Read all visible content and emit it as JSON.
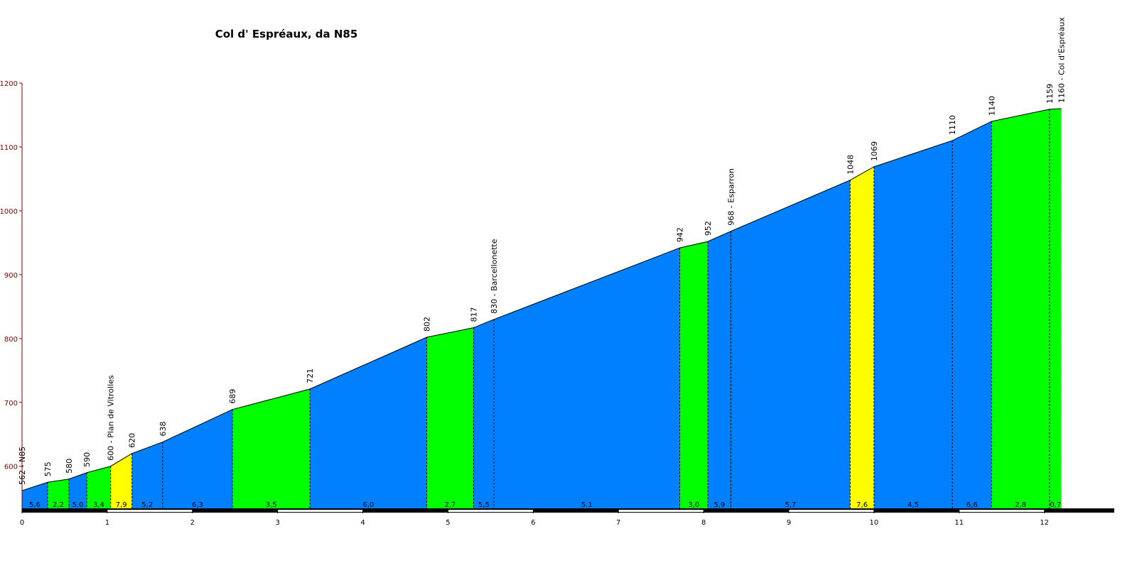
{
  "chart_data": {
    "type": "profile",
    "title": "Col d' Espréaux, da N85",
    "x": [
      0,
      0.3,
      0.55,
      0.76,
      1.04,
      1.29,
      1.65,
      2.47,
      3.38,
      4.75,
      5.3,
      5.54,
      7.72,
      8.05,
      8.32,
      9.72,
      10.0,
      10.92,
      11.38,
      12.06,
      12.2
    ],
    "values": [
      562,
      575,
      580,
      590,
      600,
      620,
      638,
      689,
      721,
      802,
      817,
      830,
      942,
      952,
      968,
      1048,
      1069,
      1110,
      1140,
      1159,
      1160
    ],
    "value_labels": [
      "562 - N85",
      "575",
      "580",
      "590",
      "600 - Plan de Vitrolles",
      "620",
      "638",
      "689",
      "721",
      "802",
      "817",
      "830 - Barcellonette",
      "942",
      "952",
      "968 - Esparron",
      "1048",
      "1069",
      "1110",
      "1140",
      "1159",
      "1160 - Col d'Espréaux"
    ],
    "grades": {
      "values": [
        5.6,
        2.2,
        5.0,
        3.4,
        7.9,
        5.2,
        6.3,
        3.5,
        6.0,
        2.7,
        5.5,
        5.1,
        3.0,
        5.9,
        5.7,
        7.6,
        4.5,
        6.6,
        2.8,
        0.7
      ],
      "value_labels": [
        "5,6",
        "2,2",
        "5,0",
        "3,4",
        "7,9",
        "5,2",
        "6,3",
        "3,5",
        "6,0",
        "2,7",
        "5,5",
        "5,1",
        "3,0",
        "5,9",
        "5,7",
        "7,6",
        "4,5",
        "6,6",
        "2,8",
        "0,7"
      ],
      "colors": [
        "#0080ff",
        "#00ff00",
        "#0080ff",
        "#00ff00",
        "#ffff00",
        "#0080ff",
        "#0080ff",
        "#00ff00",
        "#0080ff",
        "#00ff00",
        "#0080ff",
        "#0080ff",
        "#00ff00",
        "#0080ff",
        "#0080ff",
        "#ffff00",
        "#0080ff",
        "#0080ff",
        "#00ff00",
        "#00ff00"
      ]
    },
    "xlim": [
      0,
      12.82
    ],
    "xticks": [
      0,
      1,
      2,
      3,
      4,
      5,
      6,
      7,
      8,
      9,
      10,
      11,
      12
    ],
    "ylim": [
      533,
      1200
    ],
    "yticks": [
      600,
      700,
      800,
      900,
      1000,
      1100,
      1200
    ]
  }
}
